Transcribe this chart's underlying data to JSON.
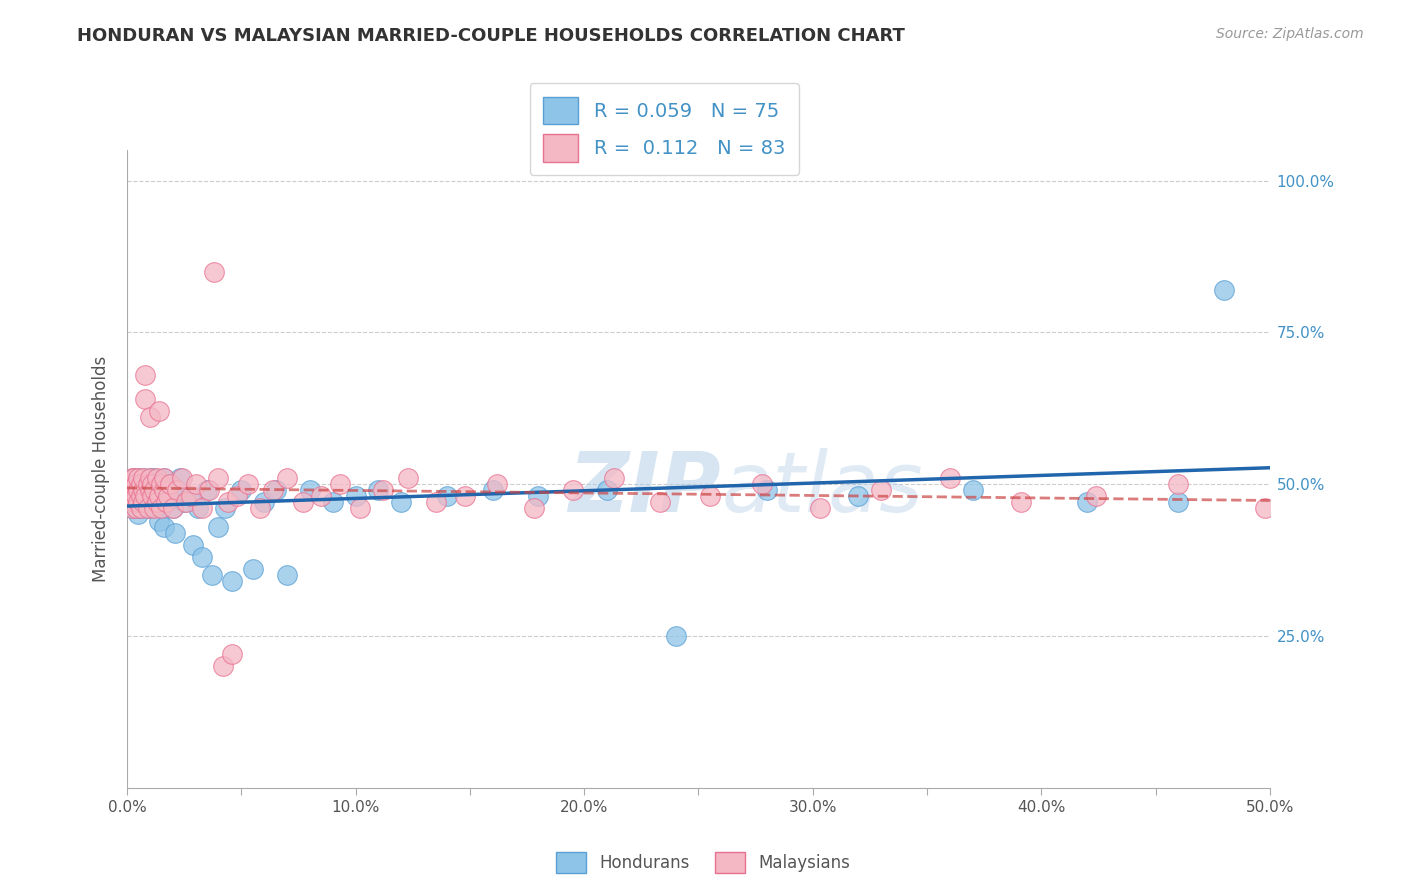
{
  "title": "HONDURAN VS MALAYSIAN MARRIED-COUPLE HOUSEHOLDS CORRELATION CHART",
  "source": "Source: ZipAtlas.com",
  "ylabel": "Married-couple Households",
  "xlim": [
    0.0,
    0.5
  ],
  "ylim": [
    0.0,
    1.05
  ],
  "xtick_values": [
    0.0,
    0.05,
    0.1,
    0.15,
    0.2,
    0.25,
    0.3,
    0.35,
    0.4,
    0.45,
    0.5
  ],
  "xtick_labels": [
    "0.0%",
    "",
    "10.0%",
    "",
    "20.0%",
    "",
    "30.0%",
    "",
    "40.0%",
    "",
    "50.0%"
  ],
  "ytick_values_right": [
    0.25,
    0.5,
    0.75,
    1.0
  ],
  "ytick_labels_right": [
    "25.0%",
    "50.0%",
    "75.0%",
    "100.0%"
  ],
  "blue_color": "#8ec4e8",
  "blue_edge_color": "#5a9fd4",
  "pink_color": "#f4b8c4",
  "pink_edge_color": "#e87090",
  "blue_line_color": "#2166ac",
  "pink_line_color": "#cc4444",
  "R_blue": 0.059,
  "N_blue": 75,
  "R_pink": 0.112,
  "N_pink": 83,
  "watermark_zip": "ZIP",
  "watermark_atlas": "atlas",
  "legend_label_blue": "Hondurans",
  "legend_label_pink": "Malaysians",
  "blue_scatter_x": [
    0.001,
    0.002,
    0.002,
    0.003,
    0.003,
    0.003,
    0.004,
    0.004,
    0.004,
    0.005,
    0.005,
    0.005,
    0.006,
    0.006,
    0.006,
    0.007,
    0.007,
    0.008,
    0.008,
    0.008,
    0.009,
    0.009,
    0.01,
    0.01,
    0.01,
    0.011,
    0.011,
    0.012,
    0.012,
    0.013,
    0.013,
    0.014,
    0.014,
    0.015,
    0.015,
    0.016,
    0.016,
    0.017,
    0.018,
    0.019,
    0.02,
    0.021,
    0.022,
    0.023,
    0.025,
    0.027,
    0.029,
    0.031,
    0.033,
    0.035,
    0.037,
    0.04,
    0.043,
    0.046,
    0.05,
    0.055,
    0.06,
    0.065,
    0.07,
    0.08,
    0.09,
    0.1,
    0.11,
    0.12,
    0.14,
    0.16,
    0.18,
    0.21,
    0.24,
    0.28,
    0.32,
    0.37,
    0.42,
    0.46,
    0.48
  ],
  "blue_scatter_y": [
    0.48,
    0.5,
    0.46,
    0.49,
    0.51,
    0.47,
    0.48,
    0.5,
    0.46,
    0.49,
    0.51,
    0.45,
    0.48,
    0.5,
    0.46,
    0.49,
    0.51,
    0.47,
    0.48,
    0.5,
    0.46,
    0.49,
    0.51,
    0.47,
    0.48,
    0.5,
    0.46,
    0.49,
    0.51,
    0.47,
    0.48,
    0.44,
    0.5,
    0.46,
    0.49,
    0.43,
    0.51,
    0.47,
    0.48,
    0.5,
    0.46,
    0.42,
    0.49,
    0.51,
    0.47,
    0.48,
    0.4,
    0.46,
    0.38,
    0.49,
    0.35,
    0.43,
    0.46,
    0.34,
    0.49,
    0.36,
    0.47,
    0.49,
    0.35,
    0.49,
    0.47,
    0.48,
    0.49,
    0.47,
    0.48,
    0.49,
    0.48,
    0.49,
    0.25,
    0.49,
    0.48,
    0.49,
    0.47,
    0.47,
    0.82
  ],
  "pink_scatter_x": [
    0.001,
    0.001,
    0.002,
    0.002,
    0.002,
    0.003,
    0.003,
    0.003,
    0.004,
    0.004,
    0.004,
    0.005,
    0.005,
    0.005,
    0.006,
    0.006,
    0.006,
    0.007,
    0.007,
    0.007,
    0.008,
    0.008,
    0.008,
    0.009,
    0.009,
    0.01,
    0.01,
    0.01,
    0.011,
    0.011,
    0.012,
    0.012,
    0.013,
    0.013,
    0.014,
    0.014,
    0.015,
    0.015,
    0.016,
    0.016,
    0.017,
    0.018,
    0.019,
    0.02,
    0.022,
    0.024,
    0.026,
    0.028,
    0.03,
    0.033,
    0.036,
    0.04,
    0.044,
    0.048,
    0.053,
    0.058,
    0.064,
    0.07,
    0.077,
    0.085,
    0.093,
    0.102,
    0.112,
    0.123,
    0.135,
    0.148,
    0.162,
    0.178,
    0.195,
    0.213,
    0.233,
    0.255,
    0.278,
    0.303,
    0.33,
    0.36,
    0.391,
    0.424,
    0.46,
    0.498,
    0.038,
    0.042,
    0.046
  ],
  "pink_scatter_y": [
    0.5,
    0.48,
    0.51,
    0.46,
    0.49,
    0.5,
    0.47,
    0.51,
    0.48,
    0.46,
    0.5,
    0.49,
    0.51,
    0.47,
    0.48,
    0.5,
    0.46,
    0.49,
    0.51,
    0.47,
    0.48,
    0.68,
    0.64,
    0.5,
    0.46,
    0.49,
    0.51,
    0.61,
    0.48,
    0.5,
    0.46,
    0.49,
    0.51,
    0.47,
    0.48,
    0.62,
    0.5,
    0.46,
    0.49,
    0.51,
    0.47,
    0.48,
    0.5,
    0.46,
    0.49,
    0.51,
    0.47,
    0.48,
    0.5,
    0.46,
    0.49,
    0.51,
    0.47,
    0.48,
    0.5,
    0.46,
    0.49,
    0.51,
    0.47,
    0.48,
    0.5,
    0.46,
    0.49,
    0.51,
    0.47,
    0.48,
    0.5,
    0.46,
    0.49,
    0.51,
    0.47,
    0.48,
    0.5,
    0.46,
    0.49,
    0.51,
    0.47,
    0.48,
    0.5,
    0.46,
    0.85,
    0.2,
    0.22
  ]
}
